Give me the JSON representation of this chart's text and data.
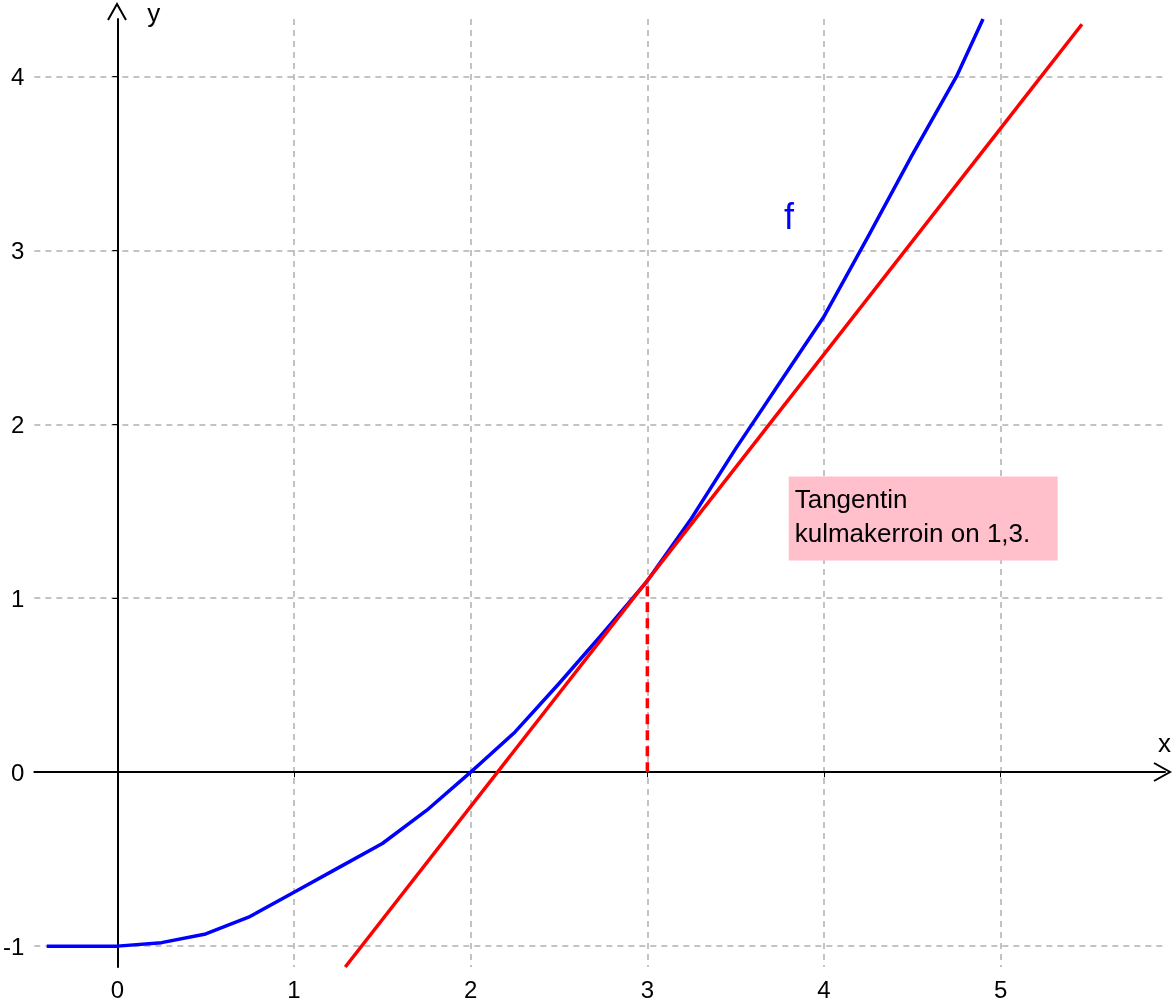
{
  "chart_data": {
    "type": "line",
    "xlabel": "x",
    "ylabel": "y",
    "annotations": [
      "Tangentin kulmakerroin on 1,3."
    ],
    "xlim": [
      -0.47,
      5.93
    ],
    "ylim": [
      -1.12,
      4.33
    ],
    "xticks": [
      0,
      1,
      2,
      3,
      4,
      5
    ],
    "yticks": [
      -1,
      0,
      1,
      2,
      3,
      4
    ],
    "grid": true,
    "marker": "none",
    "line_style": "solid",
    "series": [
      {
        "name": "f",
        "color": "#0000ff",
        "x": [
          -0.4,
          -0.2,
          0,
          0.25,
          0.5,
          0.75,
          1,
          1.25,
          1.5,
          1.75,
          2,
          2.25,
          2.5,
          2.75,
          3,
          3.25,
          3.5,
          3.75,
          4,
          4.25,
          4.5,
          4.75,
          4.9
        ],
        "values": [
          -1.0,
          -1.0,
          -1.0,
          -0.98,
          -0.93,
          -0.83,
          -0.69,
          -0.55,
          -0.41,
          -0.22,
          0.0,
          0.23,
          0.51,
          0.8,
          1.1,
          1.46,
          1.86,
          2.24,
          2.62,
          3.08,
          3.55,
          4.0,
          4.33
        ]
      },
      {
        "color": "#ff0000",
        "x": [
          1.29,
          5.46
        ],
        "values": [
          -1.12,
          4.3
        ]
      },
      {
        "color": "#ff0000",
        "x": [
          3,
          3
        ],
        "values": [
          0,
          1.1
        ],
        "line_style": "dashed"
      }
    ]
  }
}
